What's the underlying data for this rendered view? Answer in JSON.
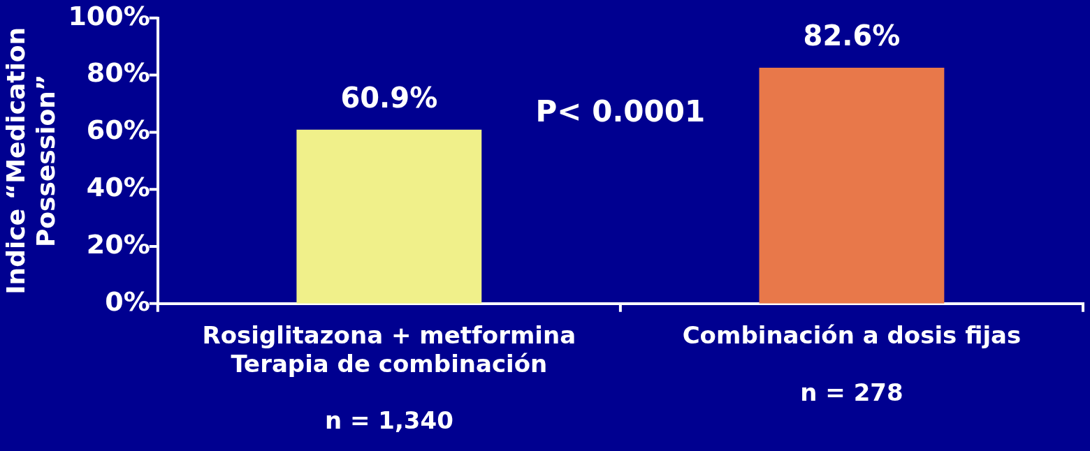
{
  "chart_data": {
    "type": "bar",
    "ylabel": "Indice “Medication\nPossession”",
    "categories": [
      "Rosiglitazona + metformina\nTerapia de combinación\n\nn = 1,340",
      "Combinación a dosis fijas\n\nn = 278"
    ],
    "values": [
      60.9,
      82.6
    ],
    "colors": [
      "#f0f08a",
      "#e8784a"
    ],
    "value_labels": [
      "60.9%",
      "82.6%"
    ],
    "ylim": [
      0,
      100
    ],
    "yticks": [
      {
        "value": 0,
        "label": "0%"
      },
      {
        "value": 20,
        "label": "20%"
      },
      {
        "value": 40,
        "label": "40%"
      },
      {
        "value": 60,
        "label": "60%"
      },
      {
        "value": 80,
        "label": "80%"
      },
      {
        "value": 100,
        "label": "100%"
      }
    ],
    "annotations": [
      "P< 0.0001"
    ],
    "grid": false,
    "legend": false
  }
}
